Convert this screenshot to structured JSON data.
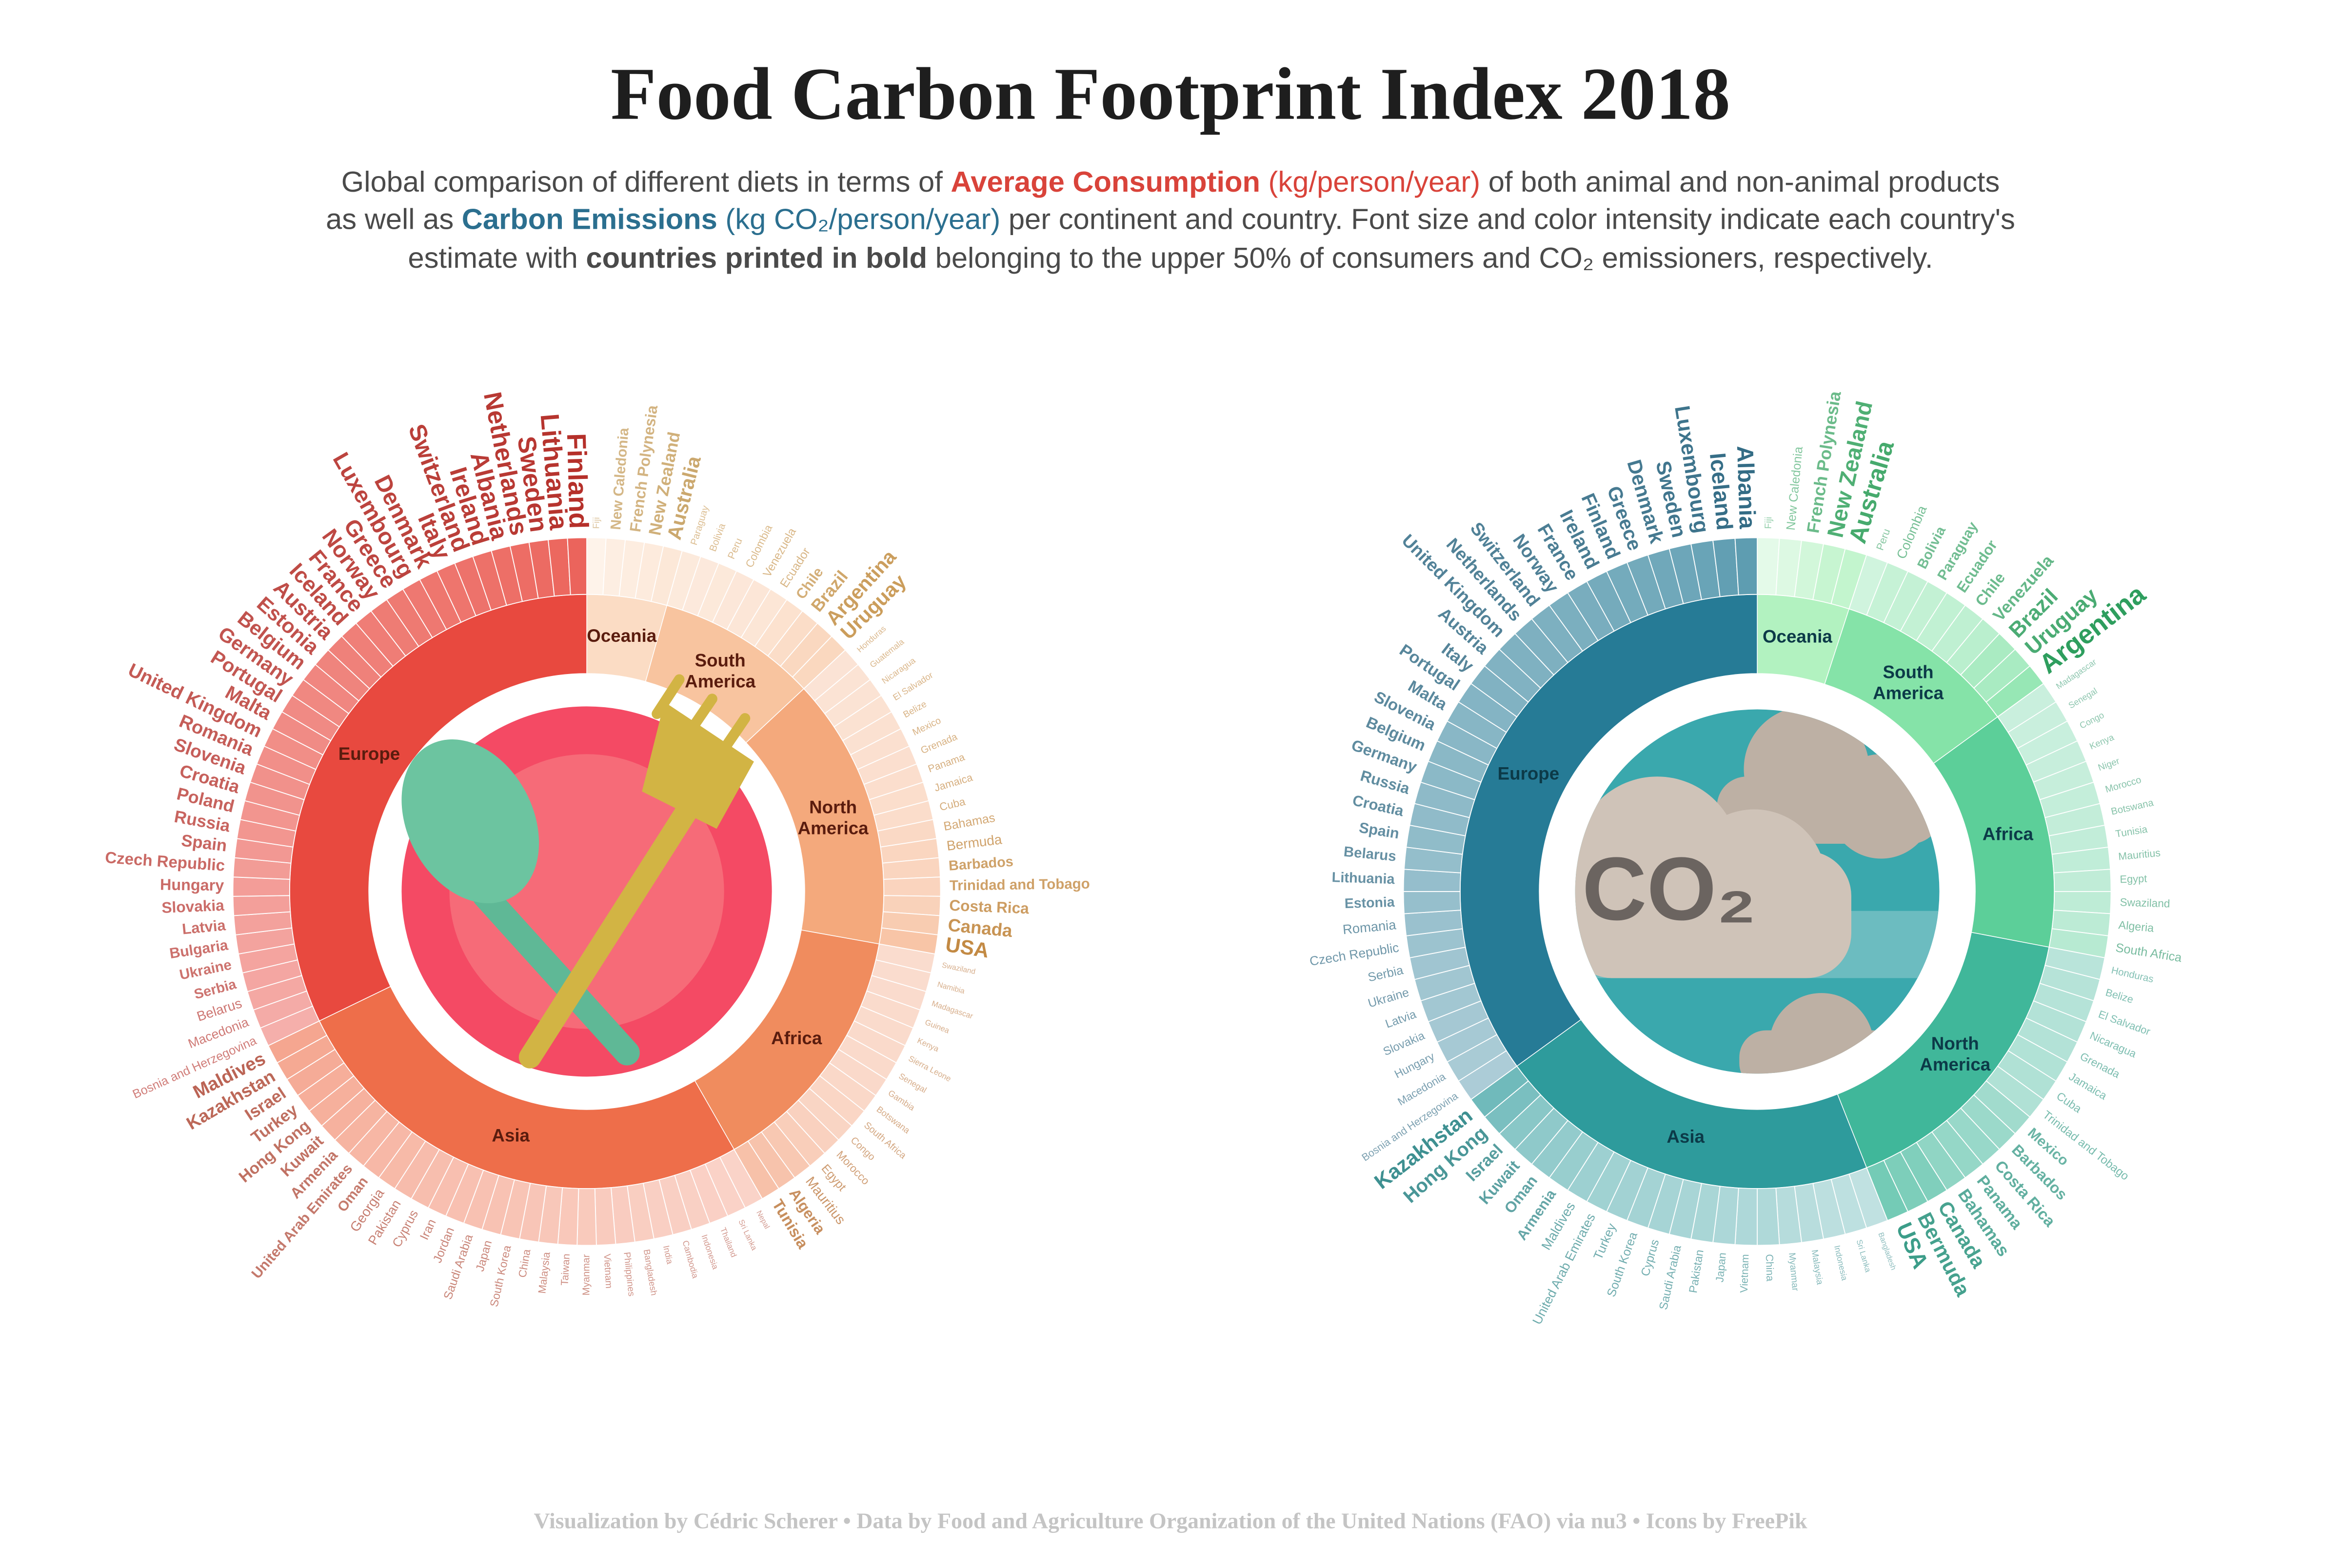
{
  "title": "Food Carbon Footprint Index 2018",
  "subtitle": [
    [
      "Global comparison of different diets in terms of ",
      "Average Consumption",
      " (kg/person/year)",
      " of both animal and non-animal products"
    ],
    [
      "as well as ",
      "Carbon Emissions",
      " (kg CO₂/person/year)",
      " per continent and country. Font size and color intensity indicate each country's"
    ],
    [
      "estimate with ",
      "countries printed in bold",
      " belonging to the upper 50% of consumers and CO₂ emissioners, respectively."
    ]
  ],
  "caption": "Visualization by Cédric Scherer  •  Data by Food and Agriculture Organization of the United Nations (FAO) via nu3  •  Icons by FreePik",
  "chart_data": [
    {
      "type": "sunburst",
      "groups": [
        {
          "name": "Oceania",
          "color": "#fbdcc4",
          "label_color": "#c0954e",
          "countries": [
            "Fiji",
            "New Caledonia",
            "French Polynesia",
            "New Zealand",
            "Australia"
          ],
          "values": [
            250,
            400,
            430,
            480,
            560
          ]
        },
        {
          "name": "South America",
          "color": "#f8c49f",
          "label_color": "#c0893a",
          "countries": [
            "Paraguay",
            "Bolivia",
            "Peru",
            "Colombia",
            "Venezuela",
            "Ecuador",
            "Chile",
            "Brazil",
            "Argentina",
            "Uruguay"
          ],
          "values": [
            260,
            270,
            280,
            300,
            320,
            330,
            400,
            480,
            560,
            570
          ]
        },
        {
          "name": "North America",
          "color": "#f4a97c",
          "label_color": "#b87420",
          "countries": [
            "Honduras",
            "Guatemala",
            "Nicaragua",
            "El Salvador",
            "Belize",
            "Mexico",
            "Grenada",
            "Panama",
            "Jamaica",
            "Cuba",
            "Bahamas",
            "Bermuda",
            "Barbados",
            "Trinidad and Tobago",
            "Costa Rica",
            "Canada",
            "USA"
          ],
          "values": [
            220,
            225,
            230,
            240,
            250,
            260,
            270,
            280,
            290,
            300,
            340,
            380,
            390,
            400,
            430,
            500,
            580
          ]
        },
        {
          "name": "Africa",
          "color": "#f08c5e",
          "label_color": "#b0601c",
          "countries": [
            "Swaziland",
            "Namibia",
            "Madagascar",
            "Guinea",
            "Kenya",
            "Sierra Leone",
            "Senegal",
            "Gambia",
            "Botswana",
            "South Africa",
            "Congo",
            "Morocco",
            "Egypt",
            "Mauritius",
            "Algeria",
            "Tunisia"
          ],
          "values": [
            200,
            205,
            210,
            212,
            215,
            220,
            225,
            230,
            240,
            260,
            270,
            300,
            330,
            380,
            420,
            440
          ]
        },
        {
          "name": "Asia",
          "color": "#ee6e4a",
          "label_color": "#a83a26",
          "countries": [
            "Nepal",
            "Sri Lanka",
            "Thailand",
            "Indonesia",
            "Cambodia",
            "India",
            "Bangladesh",
            "Philippines",
            "Vietnam",
            "Myanmar",
            "Taiwan",
            "Malaysia",
            "China",
            "South Korea",
            "Japan",
            "Saudi Arabia",
            "Jordan",
            "Iran",
            "Cyprus",
            "Pakistan",
            "Georgia",
            "Oman",
            "United Arab Emirates",
            "Armenia",
            "Kuwait",
            "Hong Kong",
            "Turkey",
            "Israel",
            "Kazakhstan",
            "Maldives"
          ],
          "values": [
            200,
            210,
            220,
            225,
            230,
            235,
            240,
            250,
            260,
            270,
            280,
            290,
            300,
            310,
            320,
            330,
            335,
            340,
            350,
            360,
            380,
            390,
            400,
            420,
            440,
            450,
            460,
            480,
            500,
            520
          ]
        },
        {
          "name": "Europe",
          "color": "#e8493f",
          "label_color": "#b5302a",
          "countries": [
            "Bosnia and Herzegovina",
            "Macedonia",
            "Belarus",
            "Serbia",
            "Ukraine",
            "Bulgaria",
            "Latvia",
            "Slovakia",
            "Hungary",
            "Czech Republic",
            "Spain",
            "Russia",
            "Poland",
            "Croatia",
            "Slovenia",
            "Romania",
            "United Kingdom",
            "Malta",
            "Portugal",
            "Germany",
            "Belgium",
            "Estonia",
            "Austria",
            "Iceland",
            "France",
            "Norway",
            "Greece",
            "Luxembourg",
            "Denmark",
            "Italy",
            "Switzerland",
            "Ireland",
            "Albania",
            "Netherlands",
            "Sweden",
            "Lithuania",
            "Finland"
          ],
          "values": [
            340,
            360,
            380,
            390,
            400,
            410,
            420,
            430,
            440,
            450,
            470,
            480,
            490,
            500,
            510,
            520,
            530,
            540,
            550,
            560,
            570,
            580,
            600,
            610,
            620,
            630,
            640,
            650,
            660,
            670,
            680,
            690,
            700,
            710,
            720,
            740,
            760
          ]
        }
      ]
    },
    {
      "type": "sunburst",
      "center_text": "CO₂",
      "groups": [
        {
          "name": "Oceania",
          "color": "#b2f2c0",
          "label_color": "#3aa564",
          "countries": [
            "Fiji",
            "New Caledonia",
            "French Polynesia",
            "New Zealand",
            "Australia"
          ],
          "values": [
            400,
            700,
            1200,
            1750,
            1940
          ]
        },
        {
          "name": "South America",
          "color": "#85e3a8",
          "label_color": "#2e9e5e",
          "countries": [
            "Peru",
            "Colombia",
            "Bolivia",
            "Paraguay",
            "Ecuador",
            "Chile",
            "Venezuela",
            "Brazil",
            "Uruguay",
            "Argentina"
          ],
          "values": [
            500,
            800,
            850,
            900,
            950,
            1000,
            1150,
            1620,
            1640,
            2170
          ]
        },
        {
          "name": "Africa",
          "color": "#5ccf99",
          "label_color": "#2a9468",
          "countries": [
            "Madagascar",
            "Senegal",
            "Congo",
            "Kenya",
            "Niger",
            "Morocco",
            "Botswana",
            "Tunisia",
            "Mauritius",
            "Egypt",
            "Swaziland",
            "Algeria",
            "South Africa"
          ],
          "values": [
            300,
            320,
            340,
            360,
            380,
            420,
            440,
            470,
            500,
            520,
            560,
            600,
            700
          ]
        },
        {
          "name": "North America",
          "color": "#40b79a",
          "label_color": "#23907a",
          "countries": [
            "Honduras",
            "Belize",
            "El Salvador",
            "Nicaragua",
            "Grenada",
            "Jamaica",
            "Cuba",
            "Trinidad and Tobago",
            "Mexico",
            "Barbados",
            "Costa Rica",
            "Panama",
            "Bahamas",
            "Canada",
            "Bermuda",
            "USA"
          ],
          "values": [
            450,
            500,
            520,
            540,
            560,
            580,
            600,
            620,
            900,
            1000,
            1050,
            1100,
            1200,
            1500,
            1560,
            1720
          ]
        },
        {
          "name": "Asia",
          "color": "#2e9b9c",
          "label_color": "#1c7c7e",
          "countries": [
            "Bangladesh",
            "Sri Lanka",
            "Indonesia",
            "Malaysia",
            "Myanmar",
            "China",
            "Vietnam",
            "Japan",
            "Pakistan",
            "Saudi Arabia",
            "Cyprus",
            "South Korea",
            "Turkey",
            "United Arab Emirates",
            "Maldives",
            "Armenia",
            "Oman",
            "Kuwait",
            "Israel",
            "Hong Kong",
            "Kazakhstan"
          ],
          "values": [
            200,
            250,
            280,
            350,
            380,
            500,
            520,
            550,
            600,
            620,
            650,
            680,
            720,
            760,
            800,
            900,
            980,
            1050,
            1150,
            1400,
            1580
          ]
        },
        {
          "name": "Europe",
          "color": "#267b96",
          "label_color": "#1d5c78",
          "countries": [
            "Bosnia and Herzegovina",
            "Macedonia",
            "Hungary",
            "Slovakia",
            "Latvia",
            "Ukraine",
            "Serbia",
            "Czech Republic",
            "Romania",
            "Estonia",
            "Lithuania",
            "Belarus",
            "Spain",
            "Croatia",
            "Russia",
            "Germany",
            "Belgium",
            "Slovenia",
            "Malta",
            "Portugal",
            "Italy",
            "Austria",
            "United Kingdom",
            "Netherlands",
            "Switzerland",
            "Norway",
            "France",
            "Ireland",
            "Finland",
            "Greece",
            "Denmark",
            "Sweden",
            "Luxembourg",
            "Iceland",
            "Albania"
          ],
          "values": [
            500,
            550,
            600,
            620,
            650,
            680,
            700,
            750,
            800,
            850,
            880,
            900,
            950,
            970,
            1000,
            1040,
            1060,
            1080,
            1100,
            1150,
            1200,
            1210,
            1240,
            1260,
            1280,
            1300,
            1350,
            1400,
            1420,
            1440,
            1480,
            1530,
            1600,
            1730,
            1780
          ]
        }
      ]
    }
  ]
}
